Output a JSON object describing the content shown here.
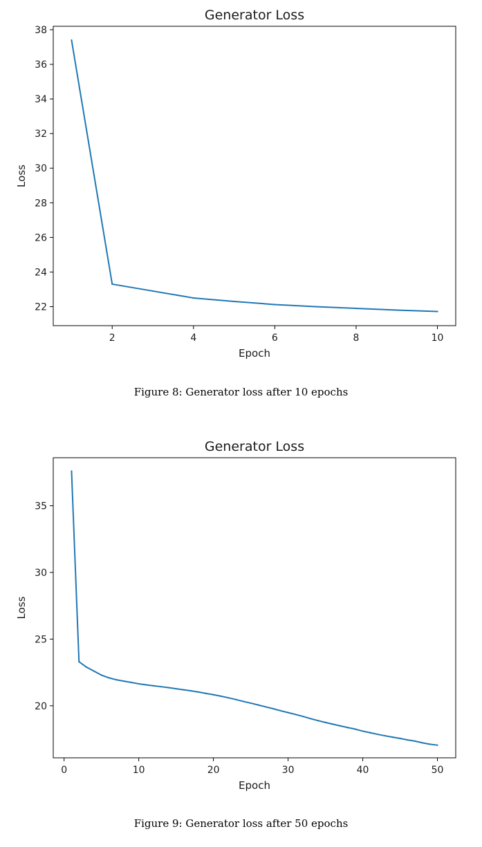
{
  "chart_data": [
    {
      "type": "line",
      "title": "Generator Loss",
      "xlabel": "Epoch",
      "ylabel": "Loss",
      "xlim": [
        0.55,
        10.45
      ],
      "ylim": [
        20.9,
        38.2
      ],
      "xticks": [
        2,
        4,
        6,
        8,
        10
      ],
      "yticks": [
        22,
        24,
        26,
        28,
        30,
        32,
        34,
        36,
        38
      ],
      "grid": false,
      "color": "#1f77b4",
      "series": [
        {
          "x": [
            1,
            2,
            3,
            4,
            5,
            6,
            7,
            8,
            9,
            10
          ],
          "values": [
            37.4,
            23.3,
            22.9,
            22.5,
            22.3,
            22.12,
            22.0,
            21.9,
            21.8,
            21.72
          ]
        }
      ]
    },
    {
      "type": "line",
      "title": "Generator Loss",
      "xlabel": "Epoch",
      "ylabel": "Loss",
      "xlim": [
        -1.45,
        52.45
      ],
      "ylim": [
        16.1,
        38.6
      ],
      "xticks": [
        0,
        10,
        20,
        30,
        40,
        50
      ],
      "yticks": [
        20,
        25,
        30,
        35
      ],
      "grid": false,
      "color": "#1f77b4",
      "series": [
        {
          "x": [
            1,
            2,
            3,
            4,
            5,
            6,
            7,
            8,
            9,
            10,
            11,
            12,
            13,
            14,
            15,
            16,
            17,
            18,
            19,
            20,
            21,
            22,
            23,
            24,
            25,
            26,
            27,
            28,
            29,
            30,
            31,
            32,
            33,
            34,
            35,
            36,
            37,
            38,
            39,
            40,
            41,
            42,
            43,
            44,
            45,
            46,
            47,
            48,
            49,
            50
          ],
          "values": [
            37.6,
            23.3,
            22.9,
            22.6,
            22.3,
            22.1,
            21.95,
            21.85,
            21.75,
            21.65,
            21.57,
            21.5,
            21.43,
            21.36,
            21.28,
            21.2,
            21.12,
            21.03,
            20.93,
            20.83,
            20.72,
            20.6,
            20.47,
            20.33,
            20.2,
            20.06,
            19.92,
            19.78,
            19.63,
            19.49,
            19.35,
            19.2,
            19.04,
            18.89,
            18.75,
            18.62,
            18.49,
            18.37,
            18.25,
            18.1,
            17.98,
            17.86,
            17.75,
            17.65,
            17.55,
            17.44,
            17.35,
            17.22,
            17.12,
            17.05
          ]
        }
      ]
    }
  ],
  "captions": {
    "fig8": "Figure 8: Generator loss after 10 epochs",
    "fig9": "Figure 9: Generator loss after 50 epochs"
  }
}
